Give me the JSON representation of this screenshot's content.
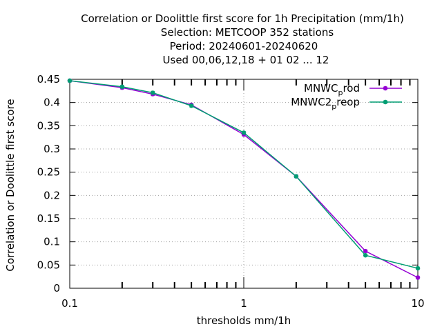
{
  "chart_data": {
    "type": "line",
    "title_lines": [
      "Correlation or Doolittle first score  for 1h Precipitation (mm/1h)",
      "Selection: METCOOP    352 stations",
      "Period: 20240601-20240620",
      "Used  00,06,12,18 + 01 02 ... 12"
    ],
    "xlabel": "thresholds mm/1h",
    "ylabel": "Correlation or Doolittle first score",
    "x_scale": "log",
    "xlim": [
      0.1,
      10
    ],
    "ylim": [
      0,
      0.45
    ],
    "x_ticks": [
      0.1,
      1,
      10
    ],
    "x_tick_labels": [
      "0.1",
      "1",
      "10"
    ],
    "y_ticks": [
      0,
      0.05,
      0.1,
      0.15,
      0.2,
      0.25,
      0.3,
      0.35,
      0.4,
      0.45
    ],
    "y_tick_labels": [
      "0",
      "0.05",
      "0.1",
      "0.15",
      "0.2",
      "0.25",
      "0.3",
      "0.35",
      "0.4",
      "0.45"
    ],
    "grid": true,
    "legend_position": "top-right",
    "series": [
      {
        "name": "MNWC_prod",
        "legend_main": "MNWC",
        "legend_sub": "p",
        "legend_rest": "rod",
        "color": "#9400d3",
        "x": [
          0.1,
          0.2,
          0.3,
          0.5,
          1,
          2,
          5,
          10
        ],
        "y": [
          0.447,
          0.432,
          0.418,
          0.395,
          0.331,
          0.241,
          0.08,
          0.023
        ]
      },
      {
        "name": "MNWC2_preop",
        "legend_main": "MNWC2",
        "legend_sub": "p",
        "legend_rest": "reop",
        "color": "#009e73",
        "x": [
          0.1,
          0.2,
          0.3,
          0.5,
          1,
          2,
          5,
          10
        ],
        "y": [
          0.447,
          0.434,
          0.421,
          0.393,
          0.335,
          0.241,
          0.071,
          0.043
        ]
      }
    ]
  }
}
